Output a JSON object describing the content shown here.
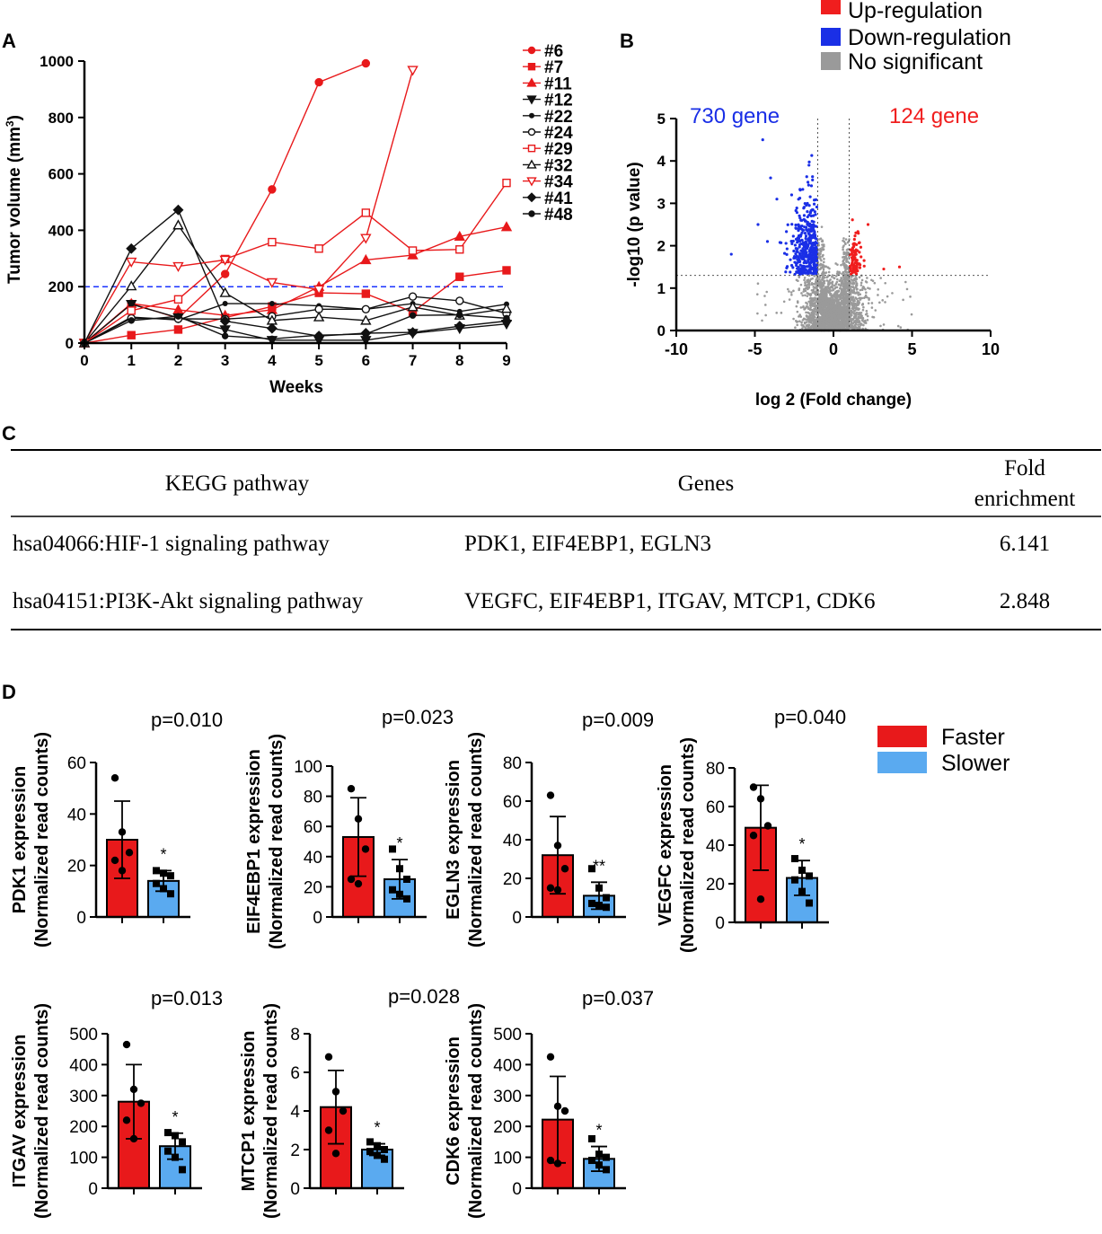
{
  "colors": {
    "red": "#e8191b",
    "black": "#111111",
    "blue_line": "#1a33ff",
    "volcano_blue": "#1a2fe6",
    "volcano_red": "#f01e1e",
    "volcano_grey": "#9a9a9a",
    "bar_red": "#e8191b",
    "bar_blue": "#5aaaf0"
  },
  "panels": {
    "a": "A",
    "b": "B",
    "c": "C",
    "d": "D"
  },
  "chart_data": [
    {
      "id": "A",
      "type": "line",
      "xlabel": "Weeks",
      "ylabel": "Tumor volume (mm",
      "ylabel_sup": "3",
      "ylabel_close": ")",
      "xlim": [
        0,
        9
      ],
      "ylim": [
        0,
        1000
      ],
      "xticks": [
        "0",
        "1",
        "2",
        "3",
        "4",
        "5",
        "6",
        "7",
        "8",
        "9"
      ],
      "yticks": [
        "0",
        "200",
        "400",
        "600",
        "800",
        "1000"
      ],
      "threshold": 200,
      "series": [
        {
          "name": "#6",
          "color": "red",
          "marker": "circle",
          "x": [
            0,
            1,
            2,
            3,
            4,
            5,
            6
          ],
          "y": [
            0,
            140,
            88,
            245,
            545,
            925,
            992
          ]
        },
        {
          "name": "#7",
          "color": "red",
          "marker": "square",
          "x": [
            0,
            1,
            2,
            3,
            4,
            5,
            6,
            7,
            8,
            9
          ],
          "y": [
            0,
            28,
            48,
            90,
            130,
            178,
            175,
            110,
            235,
            258
          ]
        },
        {
          "name": "#11",
          "color": "red",
          "marker": "triangle",
          "x": [
            0,
            1,
            2,
            3,
            4,
            5,
            6,
            7,
            8,
            9
          ],
          "y": [
            0,
            140,
            118,
            98,
            118,
            200,
            295,
            312,
            378,
            412
          ]
        },
        {
          "name": "#12",
          "color": "black",
          "marker": "tri-down",
          "x": [
            0,
            1,
            2,
            3,
            4,
            5,
            6,
            7,
            8,
            9
          ],
          "y": [
            0,
            138,
            90,
            48,
            10,
            10,
            10,
            35,
            52,
            68
          ]
        },
        {
          "name": "#22",
          "color": "black",
          "marker": "plus",
          "x": [
            0,
            1,
            2,
            3,
            4,
            5,
            6,
            7,
            8,
            9
          ],
          "y": [
            0,
            92,
            82,
            140,
            140,
            132,
            120,
            140,
            112,
            138
          ]
        },
        {
          "name": "#24",
          "color": "black",
          "marker": "circle-open",
          "x": [
            0,
            1,
            2,
            3,
            4,
            5,
            6,
            7,
            8,
            9
          ],
          "y": [
            0,
            88,
            86,
            85,
            95,
            120,
            120,
            165,
            150,
            105
          ]
        },
        {
          "name": "#29",
          "color": "red",
          "marker": "square-open",
          "x": [
            0,
            1,
            2,
            3,
            4,
            5,
            6,
            7,
            8,
            9
          ],
          "y": [
            0,
            115,
            155,
            298,
            358,
            335,
            462,
            328,
            332,
            568
          ]
        },
        {
          "name": "#32",
          "color": "black",
          "marker": "triangle-open",
          "x": [
            0,
            1,
            2,
            3,
            4,
            5,
            6,
            7,
            8,
            9
          ],
          "y": [
            0,
            202,
            418,
            178,
            80,
            92,
            80,
            128,
            98,
            122
          ]
        },
        {
          "name": "#34",
          "color": "red",
          "marker": "tri-down-open",
          "x": [
            0,
            1,
            2,
            3,
            4,
            5,
            6,
            7
          ],
          "y": [
            0,
            288,
            272,
            295,
            215,
            190,
            372,
            968
          ]
        },
        {
          "name": "#41",
          "color": "black",
          "marker": "diamond",
          "x": [
            0,
            1,
            2,
            3,
            4,
            5,
            6,
            7,
            8,
            9
          ],
          "y": [
            0,
            335,
            472,
            78,
            52,
            25,
            35,
            38,
            60,
            78
          ]
        },
        {
          "name": "#48",
          "color": "black",
          "marker": "dot",
          "x": [
            0,
            1,
            2,
            3,
            4,
            5,
            6,
            7,
            8,
            9
          ],
          "y": [
            0,
            80,
            95,
            25,
            15,
            28,
            32,
            98,
            100,
            88
          ]
        }
      ]
    },
    {
      "id": "B",
      "type": "scatter",
      "xlabel": "log 2 (Fold change)",
      "ylabel": "-log10 (p value)",
      "xlim": [
        -10,
        10
      ],
      "ylim": [
        0,
        5
      ],
      "xticks": [
        "-10",
        "-5",
        "0",
        "5",
        "10"
      ],
      "yticks": [
        "0",
        "1",
        "2",
        "3",
        "4",
        "5"
      ],
      "vlines": [
        -1,
        1
      ],
      "hline": 1.3,
      "legend": [
        "Up-regulation",
        "Down-regulation",
        "No significant"
      ],
      "annotations": {
        "down": "730 gene",
        "up": "124 gene"
      },
      "down_count": 730,
      "up_count": 124
    },
    {
      "id": "D",
      "type": "bar",
      "legend": [
        "Faster",
        "Slower"
      ],
      "ylabel_line2": "(Normalized read counts)",
      "subplots": [
        {
          "gene": "PDK1",
          "ylabel": "PDK1 expression",
          "pvalue": "p=0.010",
          "sig": "*",
          "ymax": 60,
          "yticks": [
            "0",
            "20",
            "40",
            "60"
          ],
          "faster": {
            "mean": 30,
            "sd": 15,
            "points": [
              54,
              33,
              25,
              22,
              18
            ]
          },
          "slower": {
            "mean": 14,
            "sd": 4,
            "points": [
              18,
              17,
              16,
              13,
              11,
              9
            ]
          }
        },
        {
          "gene": "EIF4EBP1",
          "ylabel": "EIF4EBP1 expression",
          "pvalue": "p=0.023",
          "sig": "*",
          "ymax": 100,
          "yticks": [
            "0",
            "20",
            "40",
            "60",
            "80",
            "100"
          ],
          "faster": {
            "mean": 53,
            "sd": 26,
            "points": [
              85,
              65,
              45,
              25,
              22
            ]
          },
          "slower": {
            "mean": 25,
            "sd": 13,
            "points": [
              45,
              32,
              25,
              18,
              15,
              12
            ]
          }
        },
        {
          "gene": "EGLN3",
          "ylabel": "EGLN3 expression",
          "pvalue": "p=0.009",
          "sig": "**",
          "ymax": 80,
          "yticks": [
            "0",
            "20",
            "40",
            "60",
            "80"
          ],
          "faster": {
            "mean": 32,
            "sd": 20,
            "points": [
              63,
              37,
              25,
              15,
              14
            ]
          },
          "slower": {
            "mean": 11,
            "sd": 7,
            "points": [
              25,
              15,
              10,
              7,
              6,
              5
            ]
          }
        },
        {
          "gene": "VEGFC",
          "ylabel": "VEGFC expression",
          "pvalue": "p=0.040",
          "sig": "*",
          "ymax": 80,
          "yticks": [
            "0",
            "20",
            "40",
            "60",
            "80"
          ],
          "faster": {
            "mean": 49,
            "sd": 22,
            "points": [
              70,
              64,
              50,
              45,
              12
            ]
          },
          "slower": {
            "mean": 23,
            "sd": 9,
            "points": [
              33,
              27,
              24,
              22,
              16,
              10
            ]
          }
        },
        {
          "gene": "ITGAV",
          "ylabel": "ITGAV expression",
          "pvalue": "p=0.013",
          "sig": "*",
          "ymax": 500,
          "yticks": [
            "0",
            "100",
            "200",
            "300",
            "400",
            "500"
          ],
          "faster": {
            "mean": 280,
            "sd": 120,
            "points": [
              465,
              320,
              275,
              220,
              160
            ]
          },
          "slower": {
            "mean": 136,
            "sd": 42,
            "points": [
              180,
              170,
              150,
              120,
              100,
              60
            ]
          }
        },
        {
          "gene": "MTCP1",
          "ylabel": "MTCP1 expression",
          "pvalue": "p=0.028",
          "sig": "*",
          "ymax": 8,
          "yticks": [
            "0",
            "2",
            "4",
            "6",
            "8"
          ],
          "faster": {
            "mean": 4.2,
            "sd": 1.9,
            "points": [
              6.8,
              5.0,
              4.0,
              3.0,
              1.8
            ]
          },
          "slower": {
            "mean": 2.0,
            "sd": 0.3,
            "points": [
              2.4,
              2.2,
              2.0,
              1.9,
              1.7,
              1.5
            ]
          }
        },
        {
          "gene": "CDK6",
          "ylabel": "CDK6 expression",
          "pvalue": "p=0.037",
          "sig": "*",
          "ymax": 500,
          "yticks": [
            "0",
            "100",
            "200",
            "300",
            "400",
            "500"
          ],
          "faster": {
            "mean": 222,
            "sd": 140,
            "points": [
              425,
              265,
              250,
              90,
              80
            ]
          },
          "slower": {
            "mean": 95,
            "sd": 40,
            "points": [
              160,
              110,
              100,
              90,
              75,
              60
            ]
          }
        }
      ]
    }
  ],
  "kegg_table": {
    "headers": {
      "pathway": "KEGG pathway",
      "genes": "Genes",
      "fold_line1": "Fold",
      "fold_line2": "enrichment"
    },
    "rows": [
      {
        "pathway": "hsa04066:HIF-1 signaling pathway",
        "genes": "PDK1, EIF4EBP1, EGLN3",
        "fold": "6.141"
      },
      {
        "pathway": "hsa04151:PI3K-Akt signaling pathway",
        "genes": "VEGFC, EIF4EBP1, ITGAV, MTCP1, CDK6",
        "fold": "2.848"
      }
    ]
  }
}
